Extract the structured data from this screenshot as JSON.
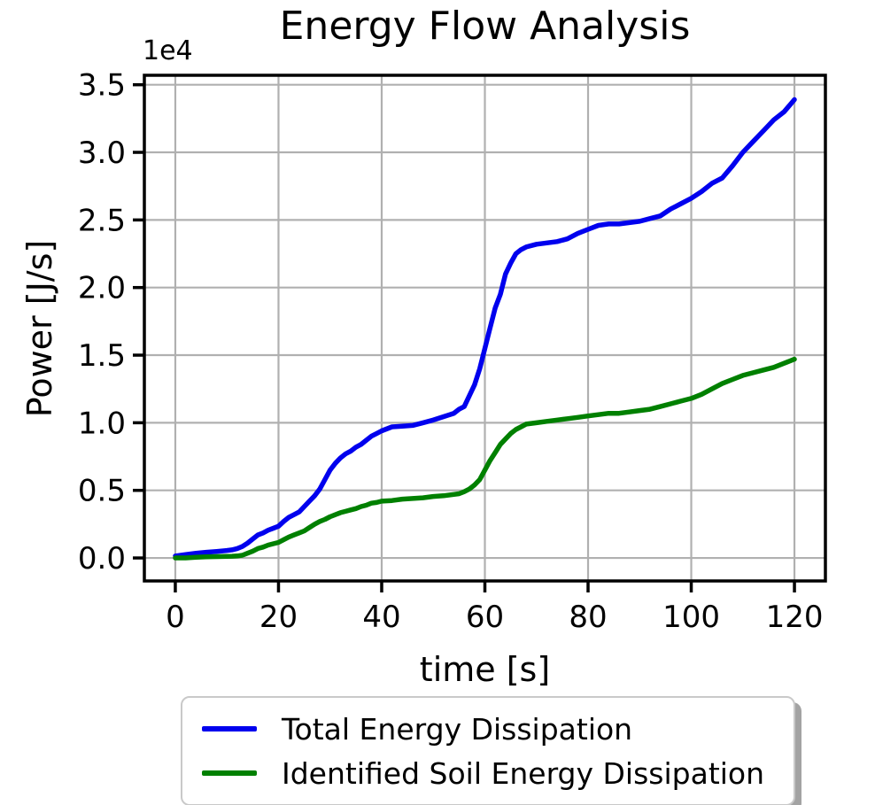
{
  "title": "Energy Flow Analysis",
  "offset_label": "1e4",
  "xlabel": "time [s]",
  "ylabel": "Power [J/s]",
  "background": "#ffffff",
  "colors": {
    "total": "#0000ee",
    "soil": "#008000",
    "grid": "#b0b0b0",
    "spine": "#000000",
    "text": "#000000",
    "legend_border": "#c9c9c9",
    "legend_shadow": "#a3a3a3"
  },
  "legend": {
    "items": [
      {
        "label": "Total Energy Dissipation",
        "color_key": "total"
      },
      {
        "label": "Identified Soil Energy Dissipation",
        "color_key": "soil"
      }
    ]
  },
  "chart_data": {
    "type": "line",
    "title": "Energy Flow Analysis",
    "xlabel": "time [s]",
    "ylabel": "Power [J/s]",
    "y_offset_text": "1e4",
    "grid": true,
    "legend_position": "below axes, centered",
    "xlim": [
      -6,
      126
    ],
    "ylim": [
      -1700,
      35700
    ],
    "xticks": [
      0,
      20,
      40,
      60,
      80,
      100,
      120
    ],
    "ytick_values": [
      0,
      5000,
      10000,
      15000,
      20000,
      25000,
      30000,
      35000
    ],
    "ytick_labels": [
      "0.0",
      "0.5",
      "1.0",
      "1.5",
      "2.0",
      "2.5",
      "3.0",
      "3.5"
    ],
    "x_shared": [
      0,
      2,
      4,
      6,
      8,
      10,
      11,
      12,
      13,
      14,
      15,
      16,
      17,
      18,
      19,
      20,
      21,
      22,
      23,
      24,
      25,
      26,
      27,
      28,
      29,
      30,
      31,
      32,
      33,
      34,
      35,
      36,
      37,
      38,
      39,
      40,
      42,
      44,
      46,
      48,
      50,
      52,
      54,
      55,
      56,
      57,
      58,
      59,
      60,
      61,
      62,
      63,
      64,
      65,
      66,
      67,
      68,
      70,
      72,
      74,
      76,
      78,
      80,
      82,
      84,
      86,
      88,
      90,
      92,
      94,
      96,
      98,
      100,
      102,
      104,
      106,
      108,
      110,
      112,
      114,
      116,
      118,
      120
    ],
    "series": [
      {
        "name": "Total Energy Dissipation",
        "color": "#0000ee",
        "x": [
          0,
          2,
          4,
          6,
          8,
          10,
          11,
          12,
          13,
          14,
          15,
          16,
          17,
          18,
          19,
          20,
          21,
          22,
          23,
          24,
          25,
          26,
          27,
          28,
          29,
          30,
          31,
          32,
          33,
          34,
          35,
          36,
          37,
          38,
          39,
          40,
          42,
          44,
          46,
          48,
          50,
          52,
          54,
          55,
          56,
          57,
          58,
          59,
          60,
          61,
          62,
          63,
          64,
          65,
          66,
          67,
          68,
          70,
          72,
          74,
          76,
          78,
          80,
          82,
          84,
          86,
          88,
          90,
          92,
          94,
          96,
          98,
          100,
          102,
          104,
          106,
          108,
          110,
          112,
          114,
          116,
          118,
          120
        ],
        "values": [
          150,
          250,
          350,
          420,
          480,
          550,
          600,
          700,
          850,
          1100,
          1400,
          1700,
          1850,
          2050,
          2200,
          2350,
          2700,
          3000,
          3200,
          3400,
          3800,
          4200,
          4600,
          5100,
          5800,
          6500,
          7000,
          7400,
          7700,
          7900,
          8200,
          8400,
          8700,
          9000,
          9200,
          9400,
          9700,
          9750,
          9800,
          10000,
          10200,
          10450,
          10700,
          11000,
          11200,
          12000,
          12800,
          14000,
          15500,
          17000,
          18500,
          19500,
          21000,
          21800,
          22500,
          22800,
          23000,
          23200,
          23300,
          23400,
          23600,
          24000,
          24300,
          24600,
          24700,
          24700,
          24800,
          24900,
          25100,
          25300,
          25800,
          26200,
          26600,
          27100,
          27700,
          28100,
          29000,
          30000,
          30800,
          31600,
          32400,
          33000,
          33900
        ]
      },
      {
        "name": "Identified Soil Energy Dissipation",
        "color": "#008000",
        "x": [
          0,
          2,
          4,
          6,
          8,
          10,
          11,
          12,
          13,
          14,
          15,
          16,
          17,
          18,
          19,
          20,
          21,
          22,
          23,
          24,
          25,
          26,
          27,
          28,
          29,
          30,
          31,
          32,
          33,
          34,
          35,
          36,
          37,
          38,
          39,
          40,
          42,
          44,
          46,
          48,
          50,
          52,
          54,
          55,
          56,
          57,
          58,
          59,
          60,
          61,
          62,
          63,
          64,
          65,
          66,
          67,
          68,
          70,
          72,
          74,
          76,
          78,
          80,
          82,
          84,
          86,
          88,
          90,
          92,
          94,
          96,
          98,
          100,
          102,
          104,
          106,
          108,
          110,
          112,
          114,
          116,
          118,
          120
        ],
        "values": [
          0,
          0,
          50,
          80,
          100,
          120,
          130,
          150,
          200,
          350,
          500,
          700,
          800,
          950,
          1050,
          1150,
          1350,
          1550,
          1700,
          1850,
          2000,
          2250,
          2500,
          2700,
          2850,
          3050,
          3200,
          3350,
          3450,
          3550,
          3650,
          3800,
          3900,
          4050,
          4100,
          4200,
          4250,
          4350,
          4400,
          4450,
          4550,
          4600,
          4700,
          4750,
          4900,
          5100,
          5400,
          5800,
          6500,
          7200,
          7800,
          8400,
          8800,
          9200,
          9500,
          9700,
          9900,
          10000,
          10100,
          10200,
          10300,
          10400,
          10500,
          10600,
          10700,
          10700,
          10800,
          10900,
          11000,
          11200,
          11400,
          11600,
          11800,
          12100,
          12500,
          12900,
          13200,
          13500,
          13700,
          13900,
          14100,
          14400,
          14700
        ]
      }
    ]
  }
}
